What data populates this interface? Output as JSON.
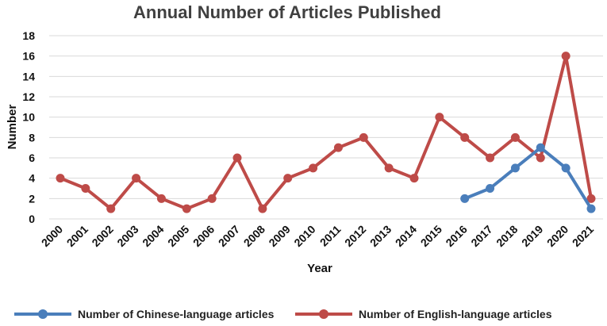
{
  "chart_data": {
    "type": "line",
    "title": "Annual Number of Articles Published",
    "xlabel": "Year",
    "ylabel": "Number",
    "ylim": [
      0,
      18
    ],
    "yticks": [
      0,
      2,
      4,
      6,
      8,
      10,
      12,
      14,
      16,
      18
    ],
    "grid": true,
    "legend_position": "bottom",
    "x": [
      "2000",
      "2001",
      "2002",
      "2003",
      "2004",
      "2005",
      "2006",
      "2007",
      "2008",
      "2009",
      "2010",
      "2011",
      "2012",
      "2013",
      "2014",
      "2015",
      "2016",
      "2017",
      "2018",
      "2019",
      "2020",
      "2021"
    ],
    "series": [
      {
        "name": "Number of Chinese-language articles",
        "color": "#4a7ebb",
        "values": [
          null,
          null,
          null,
          null,
          null,
          null,
          null,
          null,
          null,
          null,
          null,
          null,
          null,
          null,
          null,
          null,
          2,
          3,
          5,
          7,
          5,
          1
        ]
      },
      {
        "name": "Number of English-language articles",
        "color": "#be4b48",
        "values": [
          4,
          3,
          1,
          4,
          2,
          1,
          2,
          6,
          1,
          4,
          5,
          7,
          8,
          5,
          4,
          10,
          8,
          6,
          8,
          6,
          16,
          2
        ]
      }
    ]
  }
}
